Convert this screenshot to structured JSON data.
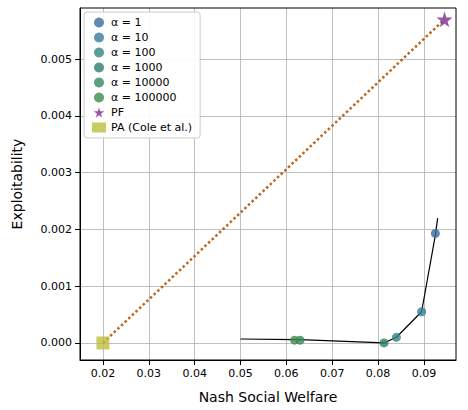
{
  "chart_data": {
    "type": "scatter",
    "x_label": "Nash Social Welfare",
    "y_label": "Exploitability",
    "xlim": [
      0.015,
      0.097
    ],
    "ylim": [
      -0.0003,
      0.0059
    ],
    "xticks": [
      0.02,
      0.03,
      0.04,
      0.05,
      0.06,
      0.07,
      0.08,
      0.09
    ],
    "yticks": [
      {
        "value": 0,
        "label": "0.000"
      },
      {
        "value": 0.001,
        "label": "0.001"
      },
      {
        "value": 0.002,
        "label": "0.002"
      },
      {
        "value": 0.003,
        "label": "0.003"
      },
      {
        "value": 0.004,
        "label": "0.004"
      },
      {
        "value": 0.005,
        "label": "0.005"
      }
    ],
    "grid": true,
    "legend": "upper left",
    "series": [
      {
        "type": "line",
        "color": "#000000",
        "line_style": "solid",
        "x": [
          0.05,
          0.0618,
          0.063,
          0.0813,
          0.084,
          0.0895,
          0.0925,
          0.093
        ],
        "values": [
          7e-05,
          6e-05,
          6e-05,
          0.0,
          0.0001,
          0.00055,
          0.0019,
          0.0022
        ]
      },
      {
        "type": "line",
        "color": "#c0651c",
        "line_style": "dotted",
        "x": [
          0.02,
          0.0945
        ],
        "values": [
          0.0,
          0.0057
        ]
      },
      {
        "name": "α = 1",
        "type": "scatter",
        "color": "#3a6c9e",
        "marker": "circle",
        "x": [
          0.0925
        ],
        "values": [
          0.00193
        ]
      },
      {
        "name": "α = 10",
        "type": "scatter",
        "color": "#377a98",
        "marker": "circle",
        "x": [
          0.0895
        ],
        "values": [
          0.00055
        ]
      },
      {
        "name": "α = 100",
        "type": "scatter",
        "color": "#2f8585",
        "marker": "circle",
        "x": [
          0.084
        ],
        "values": [
          0.0001
        ]
      },
      {
        "name": "α = 1000",
        "type": "scatter",
        "color": "#2f7e6a",
        "marker": "circle",
        "x": [
          0.0813
        ],
        "values": [
          0.0
        ]
      },
      {
        "name": "α = 10000",
        "type": "scatter",
        "color": "#38875a",
        "marker": "circle",
        "x": [
          0.063
        ],
        "values": [
          5e-05
        ]
      },
      {
        "name": "α = 100000",
        "type": "scatter",
        "color": "#3f8a48",
        "marker": "circle",
        "x": [
          0.0618
        ],
        "values": [
          5e-05
        ]
      },
      {
        "name": "PF",
        "type": "scatter",
        "color": "#7a2d8c",
        "marker": "star",
        "x": [
          0.0945
        ],
        "values": [
          0.0057
        ]
      },
      {
        "name": "PA (Cole et al.)",
        "type": "scatter",
        "color": "#bcbf3c",
        "marker": "square",
        "x": [
          0.02
        ],
        "values": [
          0.0
        ]
      }
    ]
  }
}
